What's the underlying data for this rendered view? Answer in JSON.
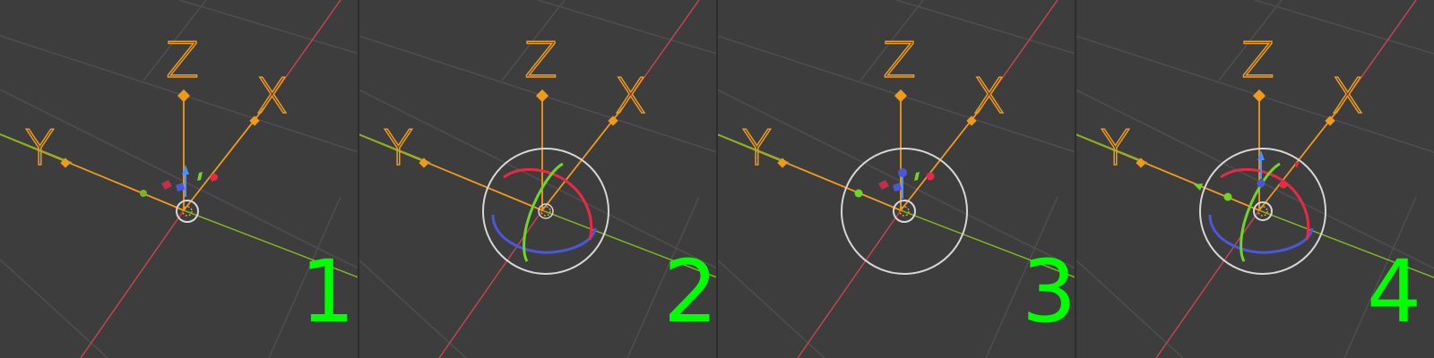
{
  "colors": {
    "background": "#3d3d3d",
    "grid": "#4e4e4e",
    "x_axis": "#c0454f",
    "y_axis": "#7fb324",
    "highlight": "#f09a1a",
    "panel_number": "#00ff00",
    "gizmo_blue": "#4a58d8",
    "gizmo_red": "#e82a46",
    "gizmo_green": "#6ed626",
    "gizmo_white": "#d6d6d6"
  },
  "axis_labels": {
    "x": "X",
    "y": "Y",
    "z": "Z"
  },
  "panels": [
    {
      "number": "1",
      "gizmo": "translate"
    },
    {
      "number": "2",
      "gizmo": "rotate"
    },
    {
      "number": "3",
      "gizmo": "scale"
    },
    {
      "number": "4",
      "gizmo": "all"
    }
  ]
}
